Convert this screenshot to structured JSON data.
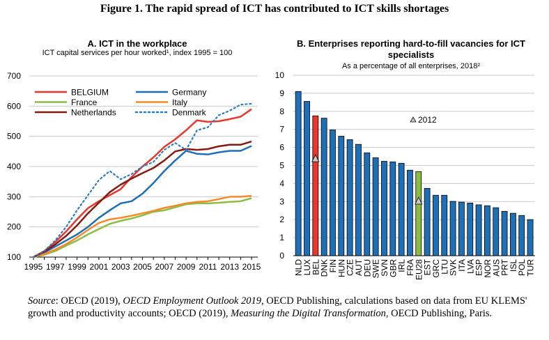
{
  "figure_title": "Figure 1. The rapid spread of ICT has contributed to ICT skills shortages",
  "source": {
    "label": "Source",
    "text1": ": OECD (2019), ",
    "italic1": "OECD Employment Outlook 2019",
    "text2": ", OECD Publishing, calculations based on data from EU KLEMS' growth and productivity accounts; OECD (2019), ",
    "italic2": "Measuring the Digital Transformation",
    "text3": ", OECD Publishing, Paris."
  },
  "chart_data": [
    {
      "type": "line",
      "title": "A. ICT in the workplace",
      "subtitle": "ICT capital services per hour worked¹, index 1995 = 100",
      "x": [
        1995,
        1996,
        1997,
        1998,
        1999,
        2000,
        2001,
        2002,
        2003,
        2004,
        2005,
        2006,
        2007,
        2008,
        2009,
        2010,
        2011,
        2012,
        2013,
        2014,
        2015
      ],
      "xticks": [
        "1995",
        "1997",
        "1999",
        "2001",
        "2003",
        "2005",
        "2007",
        "2009",
        "2011",
        "2013",
        "2015"
      ],
      "yticks": [
        "100",
        "200",
        "300",
        "400",
        "500",
        "600",
        "700"
      ],
      "ylim": [
        100,
        700
      ],
      "grid": true,
      "legend": "top-left",
      "series": [
        {
          "name": "BELGIUM",
          "color": "#e8372f",
          "style": "solid",
          "values": [
            100,
            120,
            150,
            185,
            225,
            262,
            285,
            305,
            325,
            365,
            400,
            430,
            465,
            490,
            520,
            553,
            548,
            550,
            557,
            565,
            590
          ]
        },
        {
          "name": "Germany",
          "color": "#1f6fb6",
          "style": "solid",
          "values": [
            100,
            115,
            135,
            155,
            175,
            200,
            230,
            255,
            278,
            285,
            310,
            345,
            385,
            420,
            452,
            442,
            440,
            447,
            452,
            452,
            468
          ]
        },
        {
          "name": "France",
          "color": "#8bbd45",
          "style": "solid",
          "values": [
            100,
            108,
            120,
            138,
            155,
            175,
            193,
            210,
            220,
            228,
            238,
            250,
            255,
            265,
            275,
            278,
            278,
            280,
            283,
            285,
            295
          ]
        },
        {
          "name": "Italy",
          "color": "#f58a2b",
          "style": "solid",
          "values": [
            100,
            110,
            125,
            143,
            165,
            190,
            213,
            225,
            230,
            237,
            245,
            253,
            263,
            270,
            278,
            283,
            285,
            292,
            300,
            300,
            303
          ]
        },
        {
          "name": "Netherlands",
          "color": "#841b13",
          "style": "solid",
          "values": [
            100,
            118,
            142,
            170,
            205,
            245,
            280,
            315,
            340,
            360,
            378,
            395,
            420,
            450,
            458,
            455,
            458,
            467,
            472,
            472,
            483
          ]
        },
        {
          "name": "Denmark",
          "color": "#2b7bc0",
          "style": "dotted",
          "values": [
            100,
            120,
            155,
            200,
            255,
            305,
            355,
            385,
            358,
            375,
            400,
            415,
            455,
            478,
            455,
            520,
            530,
            570,
            585,
            605,
            608
          ]
        }
      ]
    },
    {
      "type": "bar",
      "title": "B. Enterprises reporting hard-to-fill vacancies for ICT specialists",
      "subtitle": "As a percentage of all enterprises, 2018²",
      "categories": [
        "NLD",
        "LUX",
        "BEL",
        "DNK",
        "FIN",
        "HUN",
        "CZE",
        "AUT",
        "DEU",
        "SWE",
        "SVN",
        "GBR",
        "IRL",
        "FRA",
        "EU28",
        "EST",
        "GRC",
        "LTU",
        "SVK",
        "ITA",
        "LVA",
        "ESP",
        "NOR",
        "AUS",
        "PRT",
        "ISL",
        "POL",
        "TUR"
      ],
      "values": [
        9.1,
        8.55,
        7.75,
        7.62,
        6.97,
        6.62,
        6.43,
        6.17,
        5.7,
        5.43,
        5.23,
        5.2,
        5.12,
        4.74,
        4.66,
        3.73,
        3.35,
        3.35,
        3.01,
        2.97,
        2.92,
        2.82,
        2.77,
        2.66,
        2.46,
        2.35,
        2.23,
        2.0
      ],
      "highlight": {
        "BEL": "#e8372f",
        "EU28": "#8bbd45"
      },
      "bar_color": "#1f6fb6",
      "markers_2012": {
        "BEL": 5.4,
        "EU28": 3.05
      },
      "marker_legend": "2012",
      "marker_color": "#c8c8c8",
      "yticks": [
        "0",
        "1",
        "2",
        "3",
        "4",
        "5",
        "6",
        "7",
        "8",
        "9",
        "10"
      ],
      "ylim": [
        0,
        10
      ],
      "grid": true
    }
  ]
}
